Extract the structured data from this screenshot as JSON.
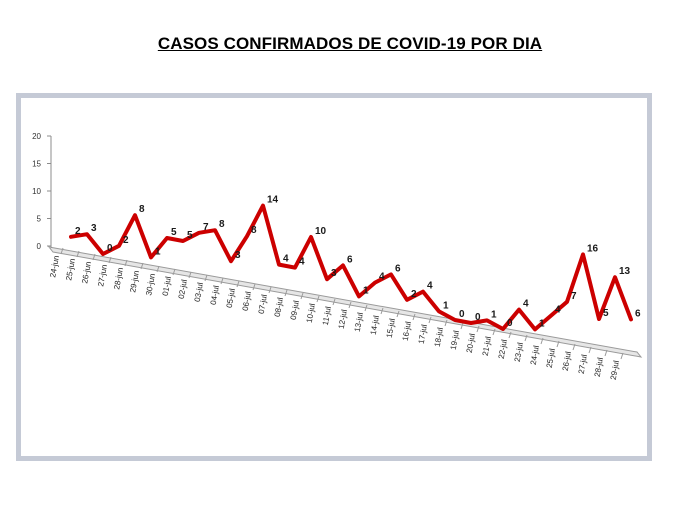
{
  "title": "CASOS CONFIRMADOS DE COVID-19 POR DIA",
  "colors": {
    "line": "#cc0000",
    "frame": "#c5cad6",
    "axis": "#8c8c8c",
    "floor": "#e6e6e6"
  },
  "chart_data": {
    "type": "line",
    "title": "CASOS CONFIRMADOS DE COVID-19 POR DIA",
    "xlabel": "",
    "ylabel": "",
    "ylim": [
      0,
      20
    ],
    "yticks": [
      "0",
      "5",
      "10",
      "15",
      "20"
    ],
    "grid": false,
    "legend": "none",
    "style": "3d-perspective",
    "categories": [
      "24-jun",
      "25-jun",
      "26-jun",
      "27-jun",
      "28-jun",
      "29-jun",
      "30-jun",
      "01-jul",
      "02-jul",
      "03-jul",
      "04-jul",
      "05-jul",
      "06-jul",
      "07-jul",
      "08-jul",
      "09-jul",
      "10-jul",
      "11-jul",
      "12-jul",
      "13-jul",
      "14-jul",
      "15-jul",
      "16-jul",
      "17-jul",
      "18-jul",
      "19-jul",
      "20-jul",
      "21-jul",
      "22-jul",
      "23-jul",
      "24-jul",
      "25-jul",
      "26-jul",
      "27-jul",
      "28-jul",
      "29-jul"
    ],
    "series": [
      {
        "values": [
          2,
          3,
          0,
          2,
          8,
          1,
          5,
          5,
          7,
          8,
          3,
          8,
          14,
          4,
          4,
          10,
          3,
          6,
          1,
          4,
          6,
          2,
          4,
          1,
          0,
          0,
          1,
          0,
          4,
          1,
          4,
          7,
          16,
          5,
          13,
          6
        ]
      }
    ]
  }
}
